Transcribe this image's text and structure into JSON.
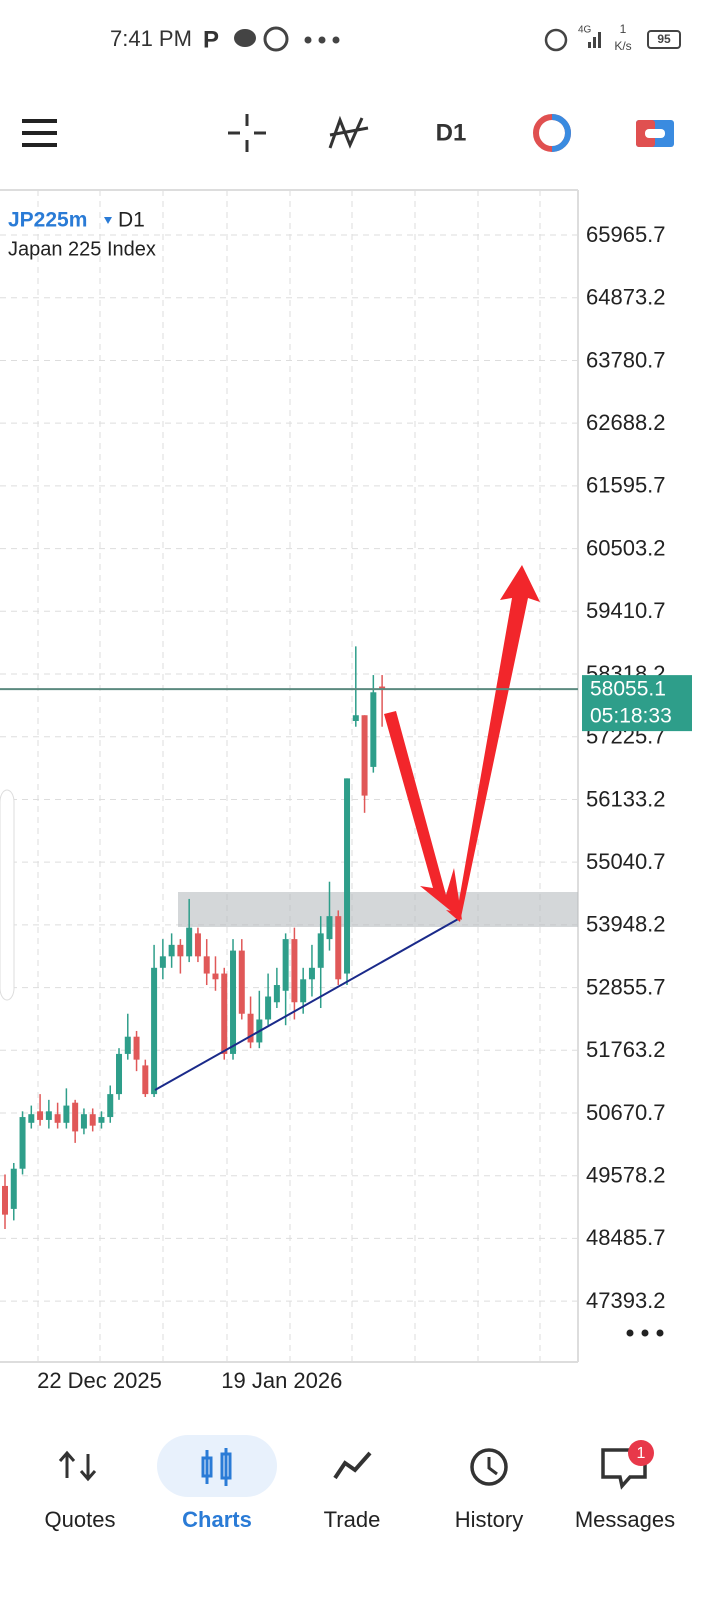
{
  "status_bar": {
    "time": "7:41 PM",
    "network": "4G",
    "speed_value": "1",
    "speed_unit": "K/s",
    "battery": "95"
  },
  "toolbar": {
    "timeframe": "D1"
  },
  "chart_data": {
    "type": "candlestick",
    "symbol": "JP225m",
    "timeframe": "D1",
    "description": "Japan 225 Index",
    "categories": [
      null,
      null,
      null,
      null,
      "22 Dec 2025",
      null,
      null,
      null,
      null,
      null,
      null,
      null,
      null,
      null,
      null,
      null,
      null,
      null,
      null,
      null,
      null,
      null,
      null,
      null,
      null,
      "19 Jan 2026",
      null,
      null,
      null,
      null,
      null,
      null,
      null,
      null,
      null,
      null,
      null,
      null,
      null,
      null,
      null,
      null,
      null,
      null
    ],
    "open": [
      49400,
      49000,
      49700,
      50500,
      50700,
      50550,
      50650,
      50500,
      50850,
      50400,
      50650,
      50500,
      50600,
      51000,
      51700,
      52000,
      51500,
      51000,
      53200,
      53400,
      53600,
      53400,
      53800,
      53400,
      53100,
      53100,
      51700,
      53500,
      52400,
      51900,
      52300,
      52600,
      52800,
      53700,
      52600,
      53000,
      53200,
      53700,
      54100,
      53100,
      57500,
      57600,
      56700,
      58100
    ],
    "high": [
      49600,
      49800,
      50700,
      50800,
      51000,
      50900,
      50850,
      51100,
      50900,
      50750,
      50750,
      50700,
      51150,
      51800,
      52400,
      52100,
      51600,
      53600,
      53700,
      53800,
      53700,
      54400,
      53900,
      53700,
      53400,
      53200,
      53700,
      53700,
      52700,
      52800,
      53100,
      53200,
      53800,
      53900,
      53200,
      53600,
      54100,
      54700,
      54200,
      56500,
      58800,
      57600,
      58300,
      58300
    ],
    "low": [
      48650,
      48800,
      49600,
      50400,
      50450,
      50400,
      50400,
      50400,
      50150,
      50300,
      50350,
      50400,
      50500,
      50900,
      51600,
      51400,
      50950,
      50950,
      53000,
      53200,
      53100,
      53300,
      53300,
      52900,
      52800,
      51600,
      51600,
      52300,
      51800,
      51800,
      52200,
      52500,
      52200,
      52300,
      52400,
      52700,
      52500,
      53500,
      52900,
      52900,
      57400,
      55900,
      56600,
      57400
    ],
    "close": [
      48900,
      49700,
      50600,
      50650,
      50550,
      50700,
      50500,
      50800,
      50350,
      50650,
      50450,
      50600,
      51000,
      51700,
      52000,
      51600,
      51000,
      53200,
      53400,
      53600,
      53400,
      53900,
      53400,
      53100,
      53000,
      51700,
      53500,
      52400,
      51900,
      52300,
      52700,
      52900,
      53700,
      52600,
      53000,
      53200,
      53800,
      54100,
      53000,
      56500,
      57600,
      56200,
      58000,
      58055.1
    ],
    "up_color": "#2e9e8a",
    "down_color": "#e05858",
    "ylim": [
      46333,
      66750
    ],
    "yticks": [
      65965.7,
      64873.2,
      63780.7,
      62688.2,
      61595.7,
      60503.2,
      59410.7,
      58318.2,
      57225.7,
      56133.2,
      55040.7,
      53948.2,
      52855.7,
      51763.2,
      50670.7,
      49578.2,
      48485.7,
      47393.2
    ],
    "grid": true,
    "current_price": 58055.1,
    "countdown": "05:18:33"
  },
  "nav": {
    "items": [
      "Quotes",
      "Charts",
      "Trade",
      "History",
      "Messages"
    ],
    "active": "Charts",
    "badge": "1"
  }
}
